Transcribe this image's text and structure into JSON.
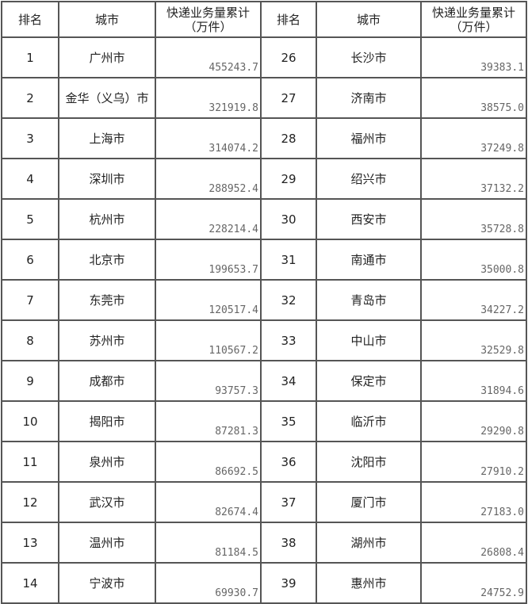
{
  "headers": {
    "rank": "排名",
    "city": "城市",
    "volume_line1": "快递业务量累计",
    "volume_line2": "（万件）"
  },
  "left_rows": [
    {
      "rank": "1",
      "city": "广州市",
      "volume": "455243.7"
    },
    {
      "rank": "2",
      "city": "金华（义乌）市",
      "volume": "321919.8"
    },
    {
      "rank": "3",
      "city": "上海市",
      "volume": "314074.2"
    },
    {
      "rank": "4",
      "city": "深圳市",
      "volume": "288952.4"
    },
    {
      "rank": "5",
      "city": "杭州市",
      "volume": "228214.4"
    },
    {
      "rank": "6",
      "city": "北京市",
      "volume": "199653.7"
    },
    {
      "rank": "7",
      "city": "东莞市",
      "volume": "120517.4"
    },
    {
      "rank": "8",
      "city": "苏州市",
      "volume": "110567.2"
    },
    {
      "rank": "9",
      "city": "成都市",
      "volume": "93757.3"
    },
    {
      "rank": "10",
      "city": "揭阳市",
      "volume": "87281.3"
    },
    {
      "rank": "11",
      "city": "泉州市",
      "volume": "86692.5"
    },
    {
      "rank": "12",
      "city": "武汉市",
      "volume": "82674.4"
    },
    {
      "rank": "13",
      "city": "温州市",
      "volume": "81184.5"
    },
    {
      "rank": "14",
      "city": "宁波市",
      "volume": "69930.7"
    }
  ],
  "right_rows": [
    {
      "rank": "26",
      "city": "长沙市",
      "volume": "39383.1"
    },
    {
      "rank": "27",
      "city": "济南市",
      "volume": "38575.0"
    },
    {
      "rank": "28",
      "city": "福州市",
      "volume": "37249.8"
    },
    {
      "rank": "29",
      "city": "绍兴市",
      "volume": "37132.2"
    },
    {
      "rank": "30",
      "city": "西安市",
      "volume": "35728.8"
    },
    {
      "rank": "31",
      "city": "南通市",
      "volume": "35000.8"
    },
    {
      "rank": "32",
      "city": "青岛市",
      "volume": "34227.2"
    },
    {
      "rank": "33",
      "city": "中山市",
      "volume": "32529.8"
    },
    {
      "rank": "34",
      "city": "保定市",
      "volume": "31894.6"
    },
    {
      "rank": "35",
      "city": "临沂市",
      "volume": "29290.8"
    },
    {
      "rank": "36",
      "city": "沈阳市",
      "volume": "27910.2"
    },
    {
      "rank": "37",
      "city": "厦门市",
      "volume": "27183.0"
    },
    {
      "rank": "38",
      "city": "湖州市",
      "volume": "26808.4"
    },
    {
      "rank": "39",
      "city": "惠州市",
      "volume": "24752.9"
    }
  ]
}
